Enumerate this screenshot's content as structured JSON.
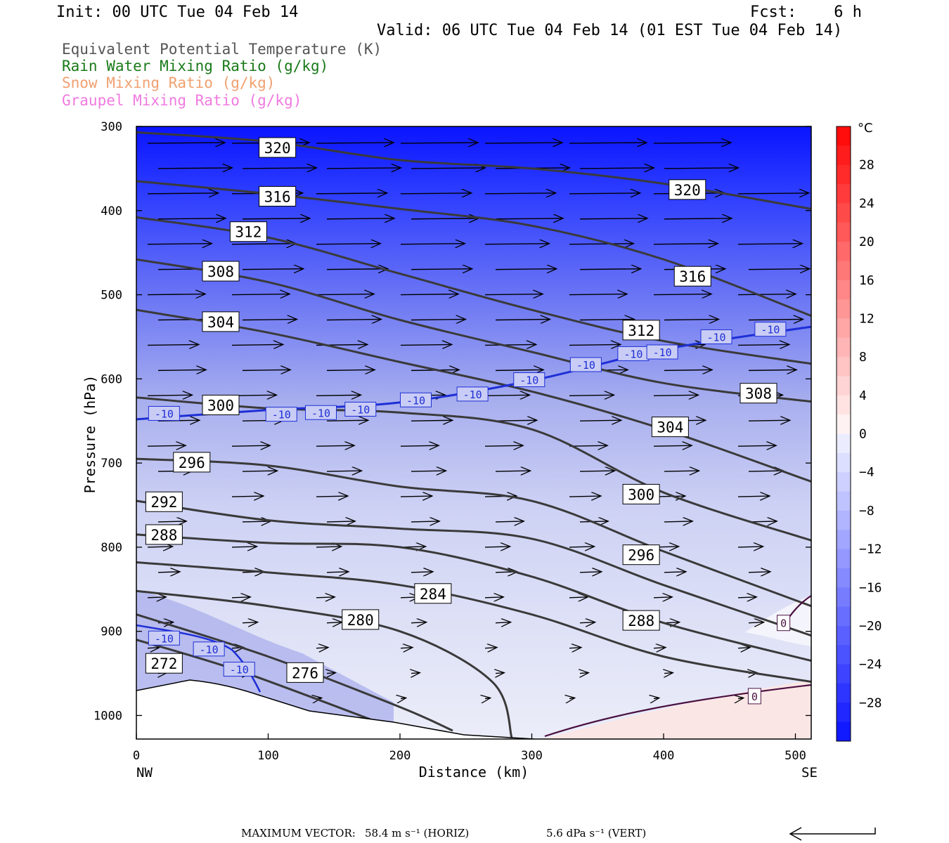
{
  "header": {
    "init": "Init: 00 UTC Tue 04 Feb 14",
    "fcst": "Fcst:    6 h",
    "valid": "Valid: 06 UTC Tue 04 Feb 14 (01 EST Tue 04 Feb 14)"
  },
  "legend": [
    {
      "label": "Equivalent Potential Temperature (K)",
      "color": "#555555"
    },
    {
      "label": "Rain Water Mixing Ratio (g/kg)",
      "color": "#1a7a1a"
    },
    {
      "label": "Snow Mixing Ratio (g/kg)",
      "color": "#f0a070"
    },
    {
      "label": "Graupel Mixing Ratio (g/kg)",
      "color": "#f07ae0"
    }
  ],
  "chart_data": {
    "type": "contour cross-section",
    "xlabel": "Distance (km)",
    "ylabel": "Pressure (hPa)",
    "x_ticks": [
      0,
      100,
      200,
      300,
      400,
      500
    ],
    "x_end_labels": {
      "left": "NW",
      "right": "SE"
    },
    "xlim": [
      0,
      512
    ],
    "y_ticks": [
      300,
      400,
      500,
      600,
      700,
      800,
      900,
      1000
    ],
    "ylim": [
      300,
      1028
    ],
    "colorbar": {
      "unit": "°C",
      "labels": [
        28,
        24,
        20,
        16,
        12,
        8,
        4,
        0,
        -4,
        -8,
        -12,
        -16,
        -20,
        -24,
        -28
      ],
      "bounds": [
        -32,
        32
      ]
    },
    "theta_e_contours": [
      {
        "value": 320,
        "labels": [
          [
            107,
            325
          ],
          [
            418,
            375
          ]
        ],
        "points": [
          [
            0,
            307
          ],
          [
            100,
            318
          ],
          [
            200,
            340
          ],
          [
            300,
            350
          ],
          [
            400,
            368
          ],
          [
            512,
            398
          ]
        ]
      },
      {
        "value": 316,
        "labels": [
          [
            107,
            383
          ],
          [
            422,
            478
          ]
        ],
        "points": [
          [
            0,
            365
          ],
          [
            100,
            380
          ],
          [
            200,
            398
          ],
          [
            300,
            418
          ],
          [
            400,
            458
          ],
          [
            512,
            525
          ]
        ]
      },
      {
        "value": 312,
        "labels": [
          [
            85,
            425
          ],
          [
            383,
            542
          ]
        ],
        "points": [
          [
            0,
            408
          ],
          [
            100,
            432
          ],
          [
            200,
            475
          ],
          [
            300,
            518
          ],
          [
            400,
            555
          ],
          [
            512,
            582
          ]
        ]
      },
      {
        "value": 308,
        "labels": [
          [
            64,
            472
          ],
          [
            472,
            617
          ]
        ],
        "points": [
          [
            0,
            458
          ],
          [
            100,
            485
          ],
          [
            200,
            530
          ],
          [
            300,
            568
          ],
          [
            400,
            605
          ],
          [
            512,
            627
          ]
        ]
      },
      {
        "value": 304,
        "labels": [
          [
            64,
            532
          ],
          [
            405,
            657
          ]
        ],
        "points": [
          [
            0,
            518
          ],
          [
            100,
            545
          ],
          [
            200,
            580
          ],
          [
            300,
            615
          ],
          [
            400,
            660
          ],
          [
            512,
            722
          ]
        ]
      },
      {
        "value": 300,
        "labels": [
          [
            64,
            631
          ],
          [
            383,
            737
          ]
        ],
        "points": [
          [
            0,
            622
          ],
          [
            100,
            635
          ],
          [
            200,
            640
          ],
          [
            300,
            660
          ],
          [
            400,
            735
          ],
          [
            512,
            792
          ]
        ]
      },
      {
        "value": 296,
        "labels": [
          [
            42,
            699
          ],
          [
            383,
            809
          ]
        ],
        "points": [
          [
            0,
            695
          ],
          [
            100,
            703
          ],
          [
            200,
            728
          ],
          [
            300,
            745
          ],
          [
            400,
            805
          ],
          [
            512,
            870
          ]
        ]
      },
      {
        "value": 292,
        "labels": [
          [
            21,
            746
          ]
        ],
        "points": [
          [
            0,
            745
          ],
          [
            100,
            768
          ],
          [
            200,
            778
          ],
          [
            300,
            790
          ],
          [
            400,
            845
          ],
          [
            512,
            905
          ]
        ]
      },
      {
        "value": 288,
        "labels": [
          [
            21,
            785
          ],
          [
            383,
            887
          ]
        ],
        "points": [
          [
            0,
            785
          ],
          [
            100,
            795
          ],
          [
            200,
            800
          ],
          [
            300,
            835
          ],
          [
            400,
            890
          ],
          [
            512,
            935
          ]
        ]
      },
      {
        "value": 284,
        "labels": [
          [
            225,
            855
          ]
        ],
        "points": [
          [
            0,
            818
          ],
          [
            100,
            830
          ],
          [
            200,
            845
          ],
          [
            300,
            880
          ],
          [
            400,
            930
          ],
          [
            512,
            960
          ]
        ]
      },
      {
        "value": 280,
        "labels": [
          [
            170,
            886
          ]
        ],
        "points": [
          [
            0,
            852
          ],
          [
            100,
            870
          ],
          [
            200,
            900
          ],
          [
            270,
            960
          ],
          [
            285,
            1028
          ]
        ]
      },
      {
        "value": 276,
        "labels": [
          [
            128,
            949
          ]
        ],
        "points": [
          [
            0,
            880
          ],
          [
            100,
            930
          ],
          [
            200,
            990
          ],
          [
            240,
            1018
          ]
        ]
      },
      {
        "value": 272,
        "labels": [
          [
            21,
            938
          ]
        ],
        "points": [
          [
            0,
            910
          ],
          [
            80,
            948
          ],
          [
            190,
            1012
          ]
        ]
      }
    ],
    "temperature_contours": [
      {
        "value": -10,
        "labels": [
          [
            21,
            641
          ],
          [
            110,
            642
          ],
          [
            140,
            640
          ],
          [
            170,
            636
          ],
          [
            212,
            625
          ],
          [
            255,
            618
          ],
          [
            298,
            601
          ],
          [
            341,
            583
          ],
          [
            377,
            570
          ],
          [
            399,
            568
          ],
          [
            440,
            550
          ],
          [
            481,
            541
          ],
          [
            21,
            908
          ],
          [
            55,
            921
          ],
          [
            78,
            945
          ]
        ],
        "points": [
          [
            0,
            648
          ],
          [
            100,
            637
          ],
          [
            200,
            628
          ],
          [
            300,
            602
          ],
          [
            400,
            565
          ],
          [
            512,
            538
          ]
        ]
      }
    ],
    "freezing_contours": [
      {
        "value": 0,
        "labels": [
          [
            491,
            890
          ],
          [
            469,
            977
          ]
        ]
      }
    ],
    "max_vector": {
      "label": "MAXIMUM VECTOR:",
      "horiz": "58.4 m s⁻¹ (HORIZ)",
      "vert": "5.6 dPa s⁻¹ (VERT)"
    }
  }
}
